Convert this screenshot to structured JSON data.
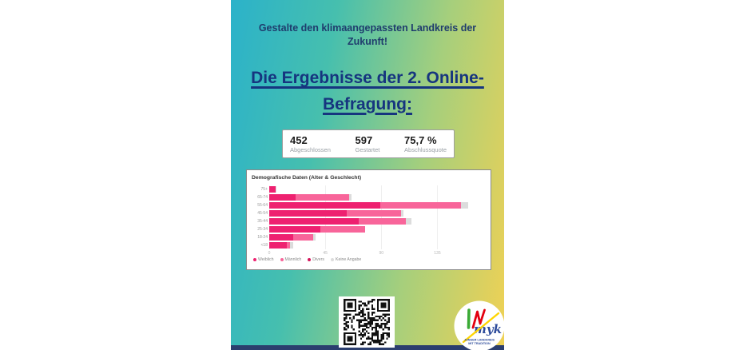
{
  "poster": {
    "tagline": "Gestalte den klimaangepassten Landkreis der Zukunft!",
    "title_line1": "Die Ergebnisse der 2. Online-",
    "title_line2": "Befragung:"
  },
  "stats": [
    {
      "value": "452",
      "label": "Abgeschlossen"
    },
    {
      "value": "597",
      "label": "Gestartet"
    },
    {
      "value": "75,7 %",
      "label": "Abschlussquote"
    }
  ],
  "chart_data": {
    "type": "bar",
    "orientation": "horizontal",
    "stacked": true,
    "title": "Demografische Daten (Alter & Geschlecht)",
    "categories": [
      "75+",
      "65-74",
      "55-64",
      "45-54",
      "35-44",
      "25-34",
      "18-24",
      "<18"
    ],
    "series": [
      {
        "name": "Weiblich",
        "color": "#ee2170",
        "values": [
          5,
          21,
          89,
          62,
          72,
          41,
          19,
          14
        ]
      },
      {
        "name": "Männlich",
        "color": "#f8659a",
        "values": [
          0,
          43,
          65,
          44,
          38,
          36,
          16,
          3
        ]
      },
      {
        "name": "Divers",
        "color": "#d4145a",
        "values": [
          0,
          0,
          0,
          0,
          0,
          0,
          0,
          0
        ]
      },
      {
        "name": "Keine Angabe",
        "color": "#dcdcdc",
        "values": [
          1,
          2,
          6,
          2,
          4,
          0,
          2,
          2
        ]
      }
    ],
    "x_ticks": [
      0,
      45,
      90,
      135
    ],
    "xlim": [
      0,
      170
    ],
    "grid": true,
    "legend_position": "bottom"
  },
  "logo": {
    "script": "myk",
    "line1": "JUNGER LANDKREIS",
    "line2": "MIT TRADITION"
  },
  "colors": {
    "gradient_left": "#2bb2ca",
    "gradient_right": "#f0d154",
    "heading_blue": "#16357f",
    "tagline_blue": "#1f3c6d",
    "bottom_strip": "#2b3e6e",
    "female_pink": "#ee2170",
    "male_pink": "#f8659a",
    "no_answer_gray": "#dcdcdc"
  }
}
